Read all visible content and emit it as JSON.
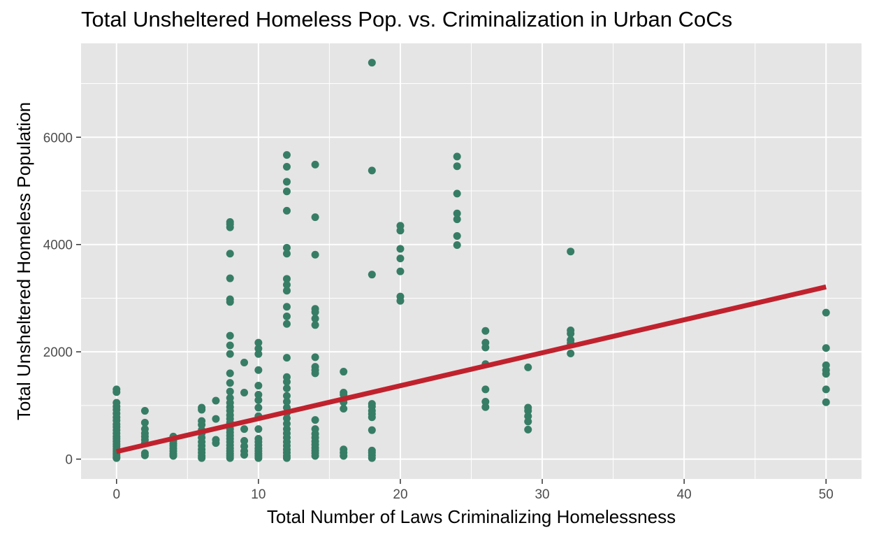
{
  "chart_data": {
    "type": "scatter",
    "title": "Total Unsheltered Homeless Pop. vs. Criminalization in Urban CoCs",
    "xlabel": "Total Number of Laws Criminalizing Homelessness",
    "ylabel": "Total Unsheltered Homeless Population",
    "xlim": [
      -2.5,
      52.5
    ],
    "ylim": [
      -370,
      7750
    ],
    "x_ticks": [
      0,
      10,
      20,
      30,
      40,
      50
    ],
    "y_ticks": [
      0,
      2000,
      4000,
      6000
    ],
    "x_tick_labels": [
      "0",
      "10",
      "20",
      "30",
      "40",
      "50"
    ],
    "y_tick_labels": [
      "0",
      "2000",
      "4000",
      "6000"
    ],
    "grid": true,
    "colors": {
      "panel_background": "#e5e5e5",
      "grid_major": "#ffffff",
      "points": "#377d66",
      "trend_line": "#c0222d"
    },
    "trend_line": {
      "x": [
        0,
        50
      ],
      "y": [
        140,
        3210
      ]
    },
    "series": [
      {
        "points": [
          [
            0,
            1300
          ],
          [
            0,
            1250
          ],
          [
            0,
            1050
          ],
          [
            0,
            980
          ],
          [
            0,
            920
          ],
          [
            0,
            850
          ],
          [
            0,
            780
          ],
          [
            0,
            720
          ],
          [
            0,
            650
          ],
          [
            0,
            600
          ],
          [
            0,
            540
          ],
          [
            0,
            480
          ],
          [
            0,
            420
          ],
          [
            0,
            380
          ],
          [
            0,
            330
          ],
          [
            0,
            280
          ],
          [
            0,
            240
          ],
          [
            0,
            190
          ],
          [
            0,
            150
          ],
          [
            0,
            110
          ],
          [
            0,
            80
          ],
          [
            0,
            40
          ],
          [
            0,
            20
          ],
          [
            2,
            900
          ],
          [
            2,
            680
          ],
          [
            2,
            560
          ],
          [
            2,
            480
          ],
          [
            2,
            420
          ],
          [
            2,
            360
          ],
          [
            2,
            300
          ],
          [
            2,
            110
          ],
          [
            2,
            70
          ],
          [
            4,
            420
          ],
          [
            4,
            380
          ],
          [
            4,
            340
          ],
          [
            4,
            290
          ],
          [
            4,
            250
          ],
          [
            4,
            200
          ],
          [
            4,
            150
          ],
          [
            4,
            100
          ],
          [
            4,
            60
          ],
          [
            6,
            960
          ],
          [
            6,
            920
          ],
          [
            6,
            710
          ],
          [
            6,
            640
          ],
          [
            6,
            540
          ],
          [
            6,
            480
          ],
          [
            6,
            400
          ],
          [
            6,
            320
          ],
          [
            6,
            250
          ],
          [
            6,
            180
          ],
          [
            6,
            120
          ],
          [
            6,
            60
          ],
          [
            6,
            20
          ],
          [
            7,
            1090
          ],
          [
            7,
            750
          ],
          [
            7,
            360
          ],
          [
            7,
            300
          ],
          [
            8,
            4420
          ],
          [
            8,
            4380
          ],
          [
            8,
            4320
          ],
          [
            8,
            3830
          ],
          [
            8,
            3370
          ],
          [
            8,
            2980
          ],
          [
            8,
            2930
          ],
          [
            8,
            2300
          ],
          [
            8,
            2120
          ],
          [
            8,
            1960
          ],
          [
            8,
            1600
          ],
          [
            8,
            1420
          ],
          [
            8,
            1260
          ],
          [
            8,
            1140
          ],
          [
            8,
            1050
          ],
          [
            8,
            970
          ],
          [
            8,
            900
          ],
          [
            8,
            820
          ],
          [
            8,
            750
          ],
          [
            8,
            680
          ],
          [
            8,
            620
          ],
          [
            8,
            560
          ],
          [
            8,
            500
          ],
          [
            8,
            440
          ],
          [
            8,
            380
          ],
          [
            8,
            320
          ],
          [
            8,
            260
          ],
          [
            8,
            200
          ],
          [
            8,
            150
          ],
          [
            8,
            100
          ],
          [
            8,
            60
          ],
          [
            8,
            20
          ],
          [
            9,
            1800
          ],
          [
            9,
            1240
          ],
          [
            9,
            560
          ],
          [
            9,
            340
          ],
          [
            9,
            240
          ],
          [
            9,
            150
          ],
          [
            9,
            80
          ],
          [
            10,
            2170
          ],
          [
            10,
            2060
          ],
          [
            10,
            1960
          ],
          [
            10,
            1660
          ],
          [
            10,
            1370
          ],
          [
            10,
            1200
          ],
          [
            10,
            1100
          ],
          [
            10,
            960
          ],
          [
            10,
            800
          ],
          [
            10,
            560
          ],
          [
            10,
            380
          ],
          [
            10,
            320
          ],
          [
            10,
            260
          ],
          [
            10,
            200
          ],
          [
            10,
            150
          ],
          [
            10,
            100
          ],
          [
            10,
            60
          ],
          [
            10,
            20
          ],
          [
            12,
            5670
          ],
          [
            12,
            5450
          ],
          [
            12,
            5170
          ],
          [
            12,
            4990
          ],
          [
            12,
            4630
          ],
          [
            12,
            3940
          ],
          [
            12,
            3830
          ],
          [
            12,
            3360
          ],
          [
            12,
            3250
          ],
          [
            12,
            3140
          ],
          [
            12,
            2840
          ],
          [
            12,
            2660
          ],
          [
            12,
            2520
          ],
          [
            12,
            1890
          ],
          [
            12,
            1530
          ],
          [
            12,
            1440
          ],
          [
            12,
            1320
          ],
          [
            12,
            1180
          ],
          [
            12,
            1070
          ],
          [
            12,
            960
          ],
          [
            12,
            860
          ],
          [
            12,
            760
          ],
          [
            12,
            660
          ],
          [
            12,
            560
          ],
          [
            12,
            480
          ],
          [
            12,
            400
          ],
          [
            12,
            320
          ],
          [
            12,
            250
          ],
          [
            12,
            180
          ],
          [
            12,
            120
          ],
          [
            12,
            60
          ],
          [
            12,
            20
          ],
          [
            14,
            5490
          ],
          [
            14,
            4510
          ],
          [
            14,
            3810
          ],
          [
            14,
            2800
          ],
          [
            14,
            2740
          ],
          [
            14,
            2620
          ],
          [
            14,
            2500
          ],
          [
            14,
            1900
          ],
          [
            14,
            1720
          ],
          [
            14,
            1660
          ],
          [
            14,
            1600
          ],
          [
            14,
            730
          ],
          [
            14,
            560
          ],
          [
            14,
            470
          ],
          [
            14,
            400
          ],
          [
            14,
            330
          ],
          [
            14,
            270
          ],
          [
            14,
            210
          ],
          [
            14,
            160
          ],
          [
            14,
            110
          ],
          [
            14,
            60
          ],
          [
            16,
            1630
          ],
          [
            16,
            1240
          ],
          [
            16,
            1200
          ],
          [
            16,
            1060
          ],
          [
            16,
            940
          ],
          [
            16,
            180
          ],
          [
            16,
            120
          ],
          [
            16,
            60
          ],
          [
            18,
            7390
          ],
          [
            18,
            5380
          ],
          [
            18,
            3440
          ],
          [
            18,
            1030
          ],
          [
            18,
            980
          ],
          [
            18,
            900
          ],
          [
            18,
            840
          ],
          [
            18,
            780
          ],
          [
            18,
            540
          ],
          [
            18,
            160
          ],
          [
            18,
            120
          ],
          [
            18,
            70
          ],
          [
            18,
            20
          ],
          [
            20,
            4350
          ],
          [
            20,
            4260
          ],
          [
            20,
            3920
          ],
          [
            20,
            3740
          ],
          [
            20,
            3500
          ],
          [
            20,
            3030
          ],
          [
            20,
            2950
          ],
          [
            24,
            5640
          ],
          [
            24,
            5460
          ],
          [
            24,
            4950
          ],
          [
            24,
            4580
          ],
          [
            24,
            4470
          ],
          [
            24,
            4160
          ],
          [
            24,
            3990
          ],
          [
            26,
            2390
          ],
          [
            26,
            2170
          ],
          [
            26,
            2080
          ],
          [
            26,
            1770
          ],
          [
            26,
            1300
          ],
          [
            26,
            1070
          ],
          [
            26,
            970
          ],
          [
            29,
            1710
          ],
          [
            29,
            960
          ],
          [
            29,
            900
          ],
          [
            29,
            800
          ],
          [
            29,
            700
          ],
          [
            29,
            550
          ],
          [
            32,
            3870
          ],
          [
            32,
            2400
          ],
          [
            32,
            2340
          ],
          [
            32,
            2220
          ],
          [
            32,
            2160
          ],
          [
            32,
            1970
          ],
          [
            50,
            2730
          ],
          [
            50,
            2070
          ],
          [
            50,
            1750
          ],
          [
            50,
            1660
          ],
          [
            50,
            1590
          ],
          [
            50,
            1300
          ],
          [
            50,
            1060
          ]
        ]
      }
    ]
  }
}
